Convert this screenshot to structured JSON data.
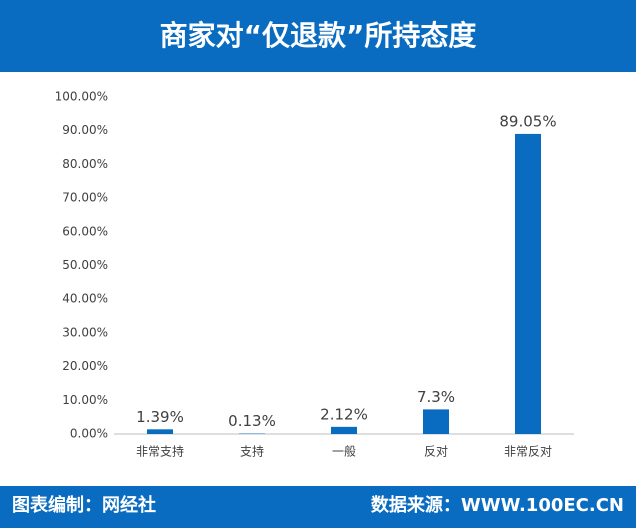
{
  "chart_data": {
    "type": "bar",
    "title": "商家对“仅退款”所持态度",
    "categories": [
      "非常支持",
      "支持",
      "一般",
      "反对",
      "非常反对"
    ],
    "values": [
      1.39,
      0.13,
      2.12,
      7.3,
      89.05
    ],
    "value_labels": [
      "1.39%",
      "0.13%",
      "2.12%",
      "7.3%",
      "89.05%"
    ],
    "color": "#0a6cc0",
    "ylim": [
      0,
      100
    ],
    "yticks": [
      {
        "value": 0,
        "label": "0.00%"
      },
      {
        "value": 10,
        "label": "10.00%"
      },
      {
        "value": 20,
        "label": "20.00%"
      },
      {
        "value": 30,
        "label": "30.00%"
      },
      {
        "value": 40,
        "label": "40.00%"
      },
      {
        "value": 50,
        "label": "50.00%"
      },
      {
        "value": 60,
        "label": "60.00%"
      },
      {
        "value": 70,
        "label": "70.00%"
      },
      {
        "value": 80,
        "label": "80.00%"
      },
      {
        "value": 90,
        "label": "90.00%"
      },
      {
        "value": 100,
        "label": "100.00%"
      }
    ],
    "grid": false
  },
  "footer": {
    "left": "图表编制：网经社",
    "right": "数据来源：WWW.100EC.CN"
  }
}
